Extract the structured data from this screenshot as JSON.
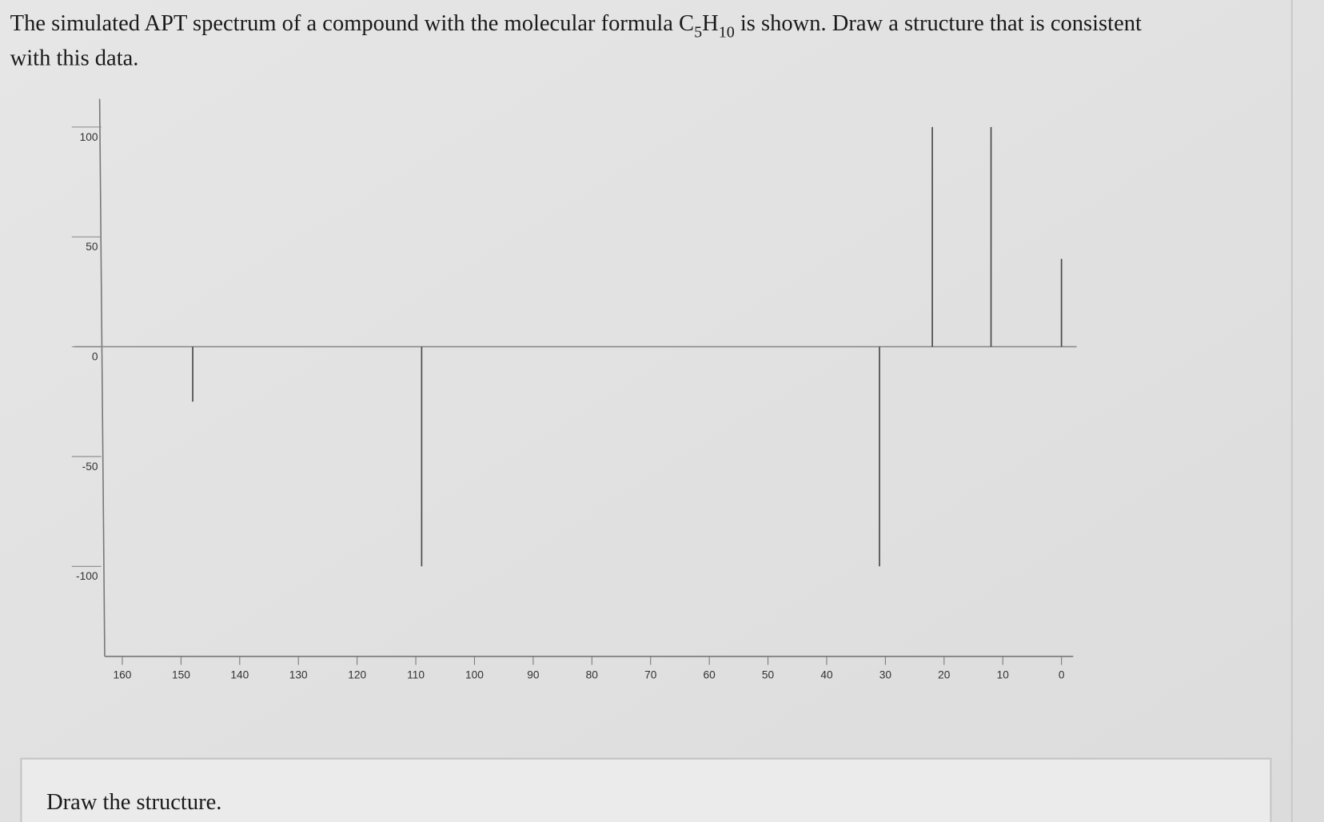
{
  "question": {
    "parts": [
      "The simulated APT spectrum of a compound with the molecular formula ",
      "C",
      "5",
      "H",
      "10",
      " is shown. Draw a structure that is consistent",
      "with this data."
    ]
  },
  "chart_data": {
    "type": "stem",
    "x": [
      148,
      109,
      31,
      22,
      12,
      0
    ],
    "values": [
      -25,
      -100,
      -100,
      100,
      100,
      40
    ],
    "color": "#4a4a4a",
    "xlim": [
      163,
      -2
    ],
    "xticks": [
      160,
      150,
      140,
      130,
      120,
      110,
      100,
      90,
      80,
      70,
      60,
      50,
      40,
      30,
      20,
      10,
      0
    ],
    "ylim": [
      -141,
      114
    ],
    "yticks": [
      100,
      50,
      0,
      -50,
      -100
    ]
  },
  "answer_box": {
    "label": "Draw the structure."
  }
}
